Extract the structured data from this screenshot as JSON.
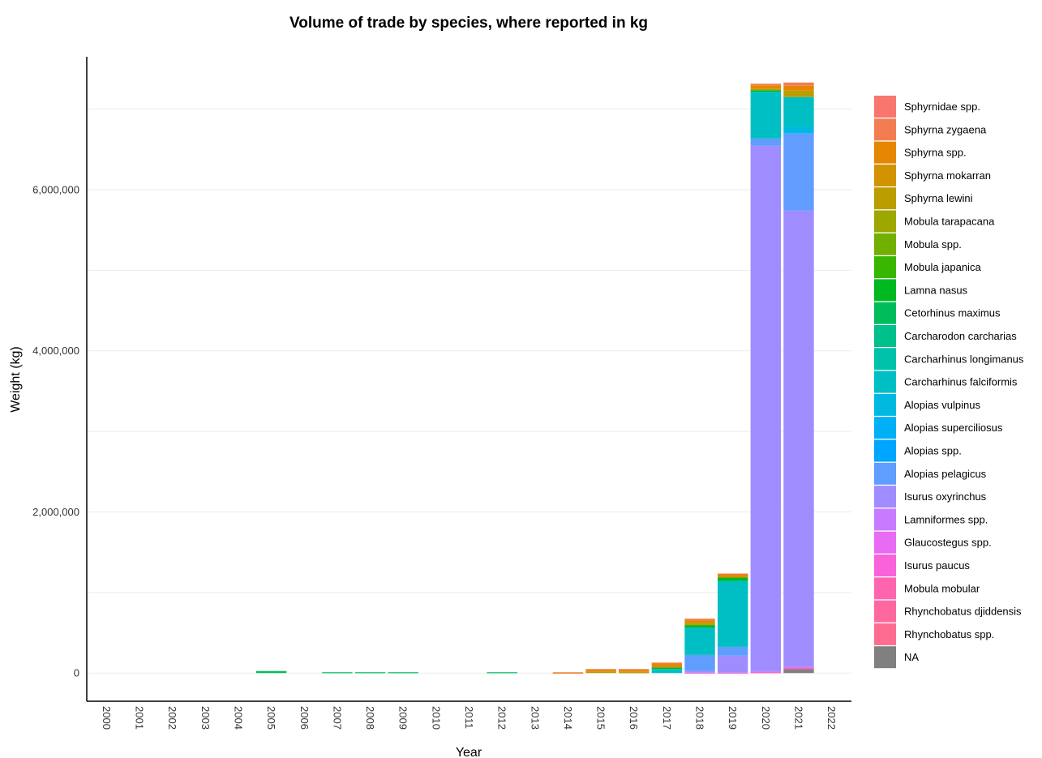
{
  "chart_data": {
    "type": "bar",
    "stacked": true,
    "title": "Volume of trade by species, where reported in kg",
    "xlabel": "Year",
    "ylabel": "Weight (kg)",
    "ylim": [
      -350000,
      7650000
    ],
    "yticks": [
      0,
      2000000,
      4000000,
      6000000
    ],
    "ytick_labels": [
      "0",
      "2,000,000",
      "4,000,000",
      "6,000,000"
    ],
    "grid": true,
    "legend_position": "right",
    "categories": [
      "2000",
      "2001",
      "2002",
      "2003",
      "2004",
      "2005",
      "2006",
      "2007",
      "2008",
      "2009",
      "2010",
      "2011",
      "2012",
      "2013",
      "2014",
      "2015",
      "2016",
      "2017",
      "2018",
      "2019",
      "2020",
      "2021",
      "2022"
    ],
    "series": [
      {
        "name": "NA",
        "color": "#808080",
        "values": [
          0,
          0,
          0,
          0,
          0,
          0,
          0,
          0,
          0,
          0,
          0,
          0,
          0,
          0,
          0,
          0,
          0,
          0,
          0,
          0,
          0,
          50000,
          0
        ]
      },
      {
        "name": "Rhynchobatus spp.",
        "color": "#FF6C91",
        "values": [
          0,
          0,
          0,
          0,
          0,
          0,
          0,
          0,
          0,
          0,
          0,
          0,
          0,
          0,
          0,
          0,
          0,
          0,
          0,
          0,
          0,
          0,
          0
        ]
      },
      {
        "name": "Rhynchobatus djiddensis",
        "color": "#FF689F",
        "values": [
          0,
          0,
          0,
          0,
          0,
          0,
          0,
          0,
          0,
          0,
          0,
          0,
          0,
          0,
          0,
          0,
          0,
          0,
          0,
          0,
          0,
          0,
          0
        ]
      },
      {
        "name": "Mobula mobular",
        "color": "#FF65AE",
        "values": [
          0,
          0,
          0,
          0,
          0,
          0,
          0,
          0,
          0,
          0,
          0,
          0,
          0,
          0,
          0,
          0,
          0,
          0,
          0,
          0,
          10000,
          10000,
          0
        ]
      },
      {
        "name": "Isurus paucus",
        "color": "#FA62DB",
        "values": [
          0,
          0,
          0,
          0,
          0,
          0,
          0,
          0,
          0,
          0,
          0,
          0,
          0,
          0,
          0,
          0,
          0,
          0,
          5000,
          5000,
          5000,
          10000,
          0
        ]
      },
      {
        "name": "Glaucostegus spp.",
        "color": "#E76BF3",
        "values": [
          0,
          0,
          0,
          0,
          0,
          0,
          0,
          0,
          0,
          0,
          0,
          0,
          0,
          0,
          0,
          0,
          0,
          0,
          0,
          0,
          0,
          0,
          0
        ]
      },
      {
        "name": "Lamniformes spp.",
        "color": "#C77CFF",
        "values": [
          0,
          0,
          0,
          0,
          0,
          0,
          0,
          0,
          0,
          0,
          0,
          0,
          0,
          0,
          0,
          0,
          0,
          0,
          0,
          0,
          10000,
          10000,
          0
        ]
      },
      {
        "name": "Isurus oxyrinchus",
        "color": "#9F8CFF",
        "values": [
          0,
          0,
          0,
          0,
          0,
          0,
          0,
          0,
          0,
          0,
          0,
          0,
          0,
          0,
          0,
          0,
          0,
          0,
          20000,
          210000,
          6520000,
          5660000,
          0
        ]
      },
      {
        "name": "Alopias pelagicus",
        "color": "#619CFF",
        "values": [
          0,
          0,
          0,
          0,
          0,
          0,
          0,
          0,
          0,
          0,
          0,
          0,
          0,
          0,
          0,
          0,
          0,
          0,
          200000,
          110000,
          90000,
          960000,
          0
        ]
      },
      {
        "name": "Alopias spp.",
        "color": "#00A5FF",
        "values": [
          0,
          0,
          0,
          0,
          0,
          0,
          0,
          0,
          0,
          0,
          0,
          0,
          0,
          0,
          0,
          0,
          0,
          0,
          0,
          0,
          0,
          0,
          0
        ]
      },
      {
        "name": "Alopias superciliosus",
        "color": "#00B0F6",
        "values": [
          0,
          0,
          0,
          0,
          0,
          0,
          0,
          0,
          0,
          0,
          0,
          0,
          0,
          0,
          0,
          0,
          0,
          0,
          0,
          0,
          0,
          0,
          0
        ]
      },
      {
        "name": "Alopias vulpinus",
        "color": "#00B9E3",
        "values": [
          0,
          0,
          0,
          0,
          0,
          0,
          0,
          0,
          0,
          0,
          0,
          0,
          0,
          0,
          0,
          0,
          0,
          0,
          0,
          0,
          0,
          80000,
          0
        ]
      },
      {
        "name": "Carcharhinus falciformis",
        "color": "#00BFC4",
        "values": [
          0,
          0,
          0,
          0,
          0,
          0,
          0,
          0,
          0,
          0,
          0,
          0,
          0,
          0,
          0,
          0,
          0,
          50000,
          340000,
          820000,
          580000,
          370000,
          0
        ]
      },
      {
        "name": "Carcharhinus longimanus",
        "color": "#00C1AA",
        "values": [
          0,
          0,
          0,
          0,
          0,
          0,
          0,
          0,
          0,
          0,
          0,
          0,
          0,
          0,
          0,
          0,
          0,
          0,
          0,
          0,
          0,
          0,
          0
        ]
      },
      {
        "name": "Carcharodon carcharias",
        "color": "#00C08B",
        "values": [
          0,
          0,
          0,
          0,
          0,
          0,
          0,
          0,
          0,
          0,
          0,
          0,
          0,
          0,
          0,
          0,
          0,
          0,
          0,
          0,
          0,
          0,
          0
        ]
      },
      {
        "name": "Cetorhinus maximus",
        "color": "#00BD5C",
        "values": [
          0,
          0,
          0,
          0,
          0,
          25000,
          0,
          10000,
          10000,
          10000,
          0,
          0,
          10000,
          0,
          0,
          0,
          0,
          0,
          0,
          0,
          0,
          0,
          0
        ]
      },
      {
        "name": "Lamna nasus",
        "color": "#00B81F",
        "values": [
          0,
          0,
          0,
          0,
          0,
          0,
          0,
          0,
          0,
          0,
          0,
          0,
          0,
          0,
          0,
          0,
          0,
          20000,
          30000,
          40000,
          20000,
          0,
          0
        ]
      },
      {
        "name": "Mobula japanica",
        "color": "#39B600",
        "values": [
          0,
          0,
          0,
          0,
          0,
          0,
          0,
          0,
          0,
          0,
          0,
          0,
          0,
          0,
          0,
          0,
          0,
          0,
          0,
          0,
          0,
          0,
          0
        ]
      },
      {
        "name": "Mobula spp.",
        "color": "#72B000",
        "values": [
          0,
          0,
          0,
          0,
          0,
          0,
          0,
          0,
          0,
          0,
          0,
          0,
          0,
          0,
          0,
          0,
          0,
          0,
          0,
          0,
          0,
          0,
          0
        ]
      },
      {
        "name": "Mobula tarapacana",
        "color": "#9CA700",
        "values": [
          0,
          0,
          0,
          0,
          0,
          0,
          0,
          0,
          0,
          0,
          0,
          0,
          0,
          0,
          0,
          0,
          0,
          0,
          0,
          0,
          0,
          0,
          0
        ]
      },
      {
        "name": "Sphyrna lewini",
        "color": "#BB9D00",
        "values": [
          0,
          0,
          0,
          0,
          0,
          0,
          0,
          0,
          0,
          0,
          0,
          0,
          0,
          0,
          0,
          20000,
          10000,
          0,
          30000,
          10000,
          20000,
          80000,
          0
        ]
      },
      {
        "name": "Sphyrna mokarran",
        "color": "#D39200",
        "values": [
          0,
          0,
          0,
          0,
          0,
          0,
          0,
          0,
          0,
          0,
          0,
          0,
          0,
          0,
          0,
          0,
          10000,
          0,
          0,
          0,
          0,
          0,
          0
        ]
      },
      {
        "name": "Sphyrna spp.",
        "color": "#E58700",
        "values": [
          0,
          0,
          0,
          0,
          0,
          0,
          0,
          0,
          0,
          0,
          0,
          0,
          0,
          0,
          5000,
          20000,
          20000,
          50000,
          30000,
          30000,
          40000,
          60000,
          0
        ]
      },
      {
        "name": "Sphyrna zygaena",
        "color": "#F27D52",
        "values": [
          0,
          0,
          0,
          0,
          0,
          0,
          0,
          0,
          0,
          0,
          0,
          0,
          0,
          0,
          5000,
          10000,
          10000,
          10000,
          20000,
          10000,
          20000,
          40000,
          0
        ]
      },
      {
        "name": "Sphyrnidae spp.",
        "color": "#F8766D",
        "values": [
          0,
          0,
          0,
          0,
          0,
          0,
          0,
          0,
          0,
          0,
          0,
          0,
          0,
          0,
          0,
          0,
          0,
          0,
          0,
          0,
          0,
          0,
          0
        ]
      }
    ]
  }
}
